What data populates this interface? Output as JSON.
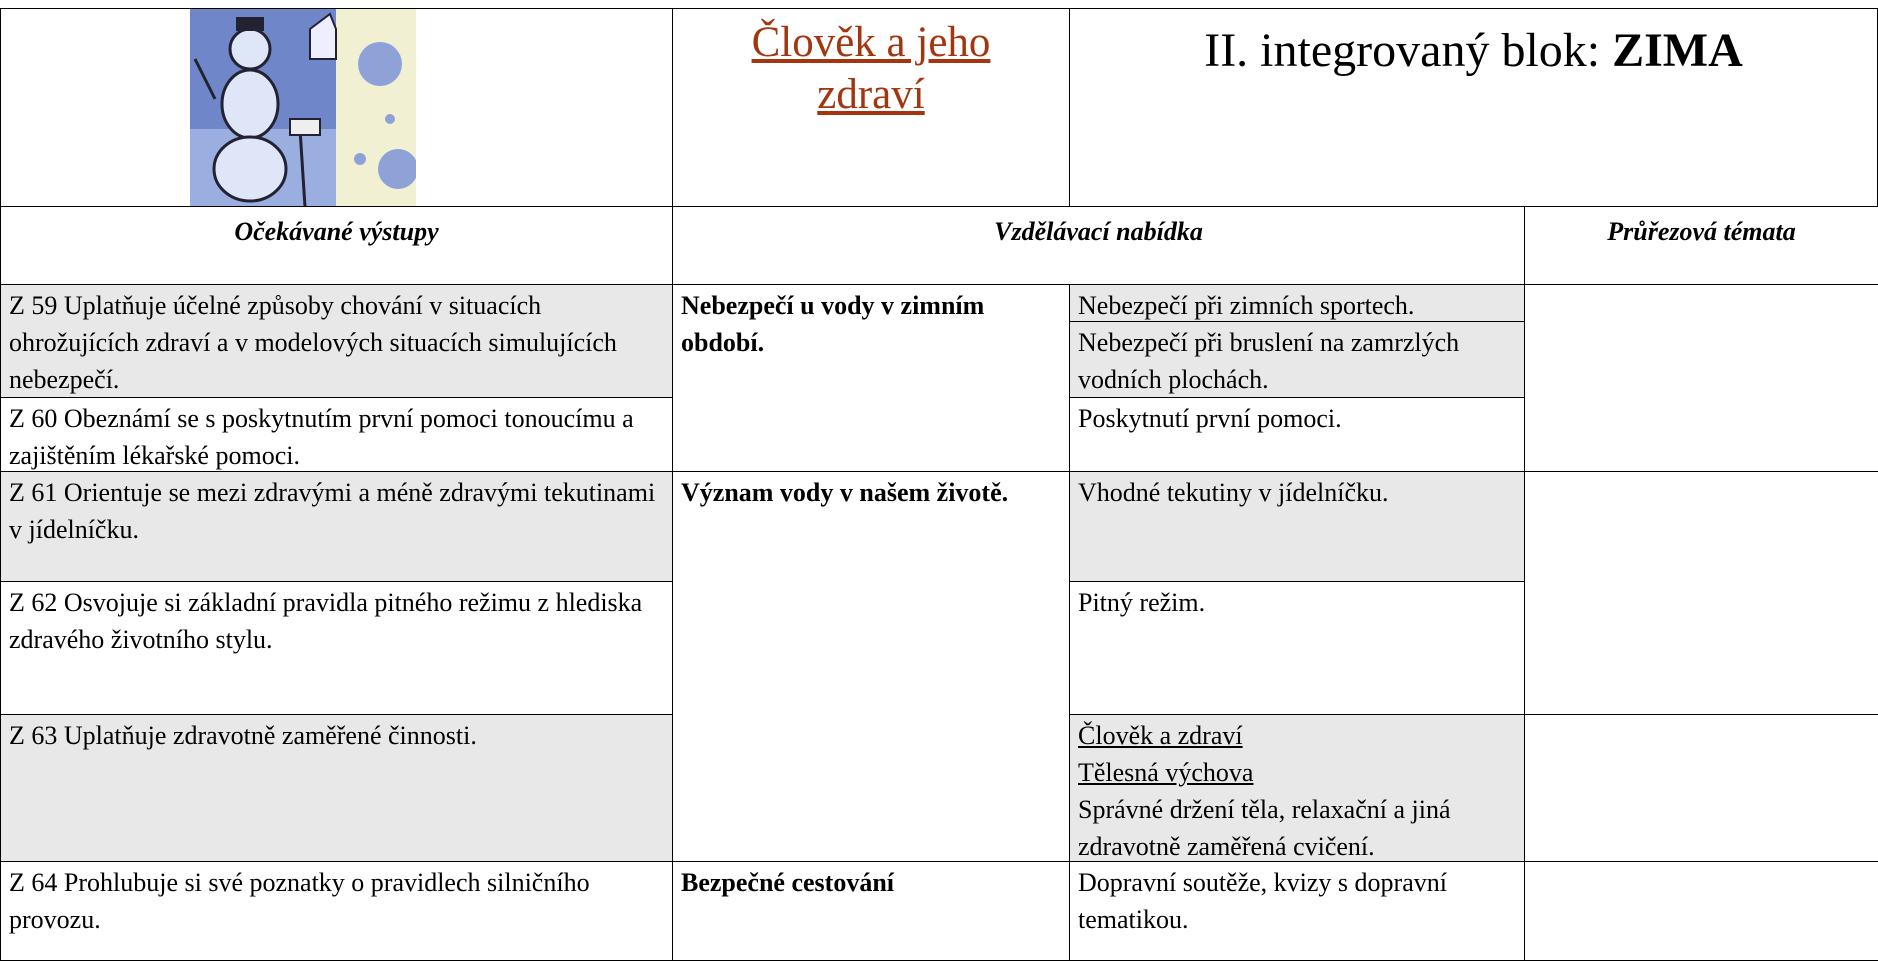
{
  "header": {
    "subject": "Člověk a jeho zdraví",
    "block_prefix": "II. integrovaný blok:",
    "block_name": "ZIMA"
  },
  "table": {
    "headers": [
      "Očekávané výstupy",
      "Vzdělávací nabídka",
      "Průřezová témata"
    ],
    "outputs": [
      "Z 59 Uplatňuje účelné způsoby chování v situacích ohrožujících zdraví a v modelových situacích simulujících nebezpečí.",
      "Z 60 Obeznámí se s poskytnutím první pomoci tonoucímu a zajištěním lékařské pomoci.",
      "Z 61 Orientuje se mezi zdravými a méně zdravými tekutinami v jídelníčku.",
      "Z 62 Osvojuje si základní pravidla pitného režimu z hlediska zdravého životního stylu.",
      "Z 63 Uplatňuje zdravotně zaměřené činnosti.",
      "Z 64 Prohlubuje si své poznatky o pravidlech silničního provozu."
    ],
    "topics": [
      "Nebezpečí u vody v zimním období.",
      "Význam vody v našem životě.",
      "Bezpečné cestování"
    ],
    "offers": [
      {
        "text": "Nebezpečí při zimních sportech."
      },
      {
        "text": "Nebezpečí při bruslení na zamrzlých vodních plochách."
      },
      {
        "text": "Poskytnutí první pomoci."
      },
      {
        "text": "Vhodné tekutiny v jídelníčku."
      },
      {
        "text": "Pitný režim."
      },
      {
        "links": [
          "Člověk a zdraví",
          "Tělesná výchova"
        ],
        "text": "Správné držení těla, relaxační a jiná zdravotně zaměřená cvičení."
      },
      {
        "text": "Dopravní soutěže, kvizy s dopravní tematikou."
      }
    ]
  }
}
